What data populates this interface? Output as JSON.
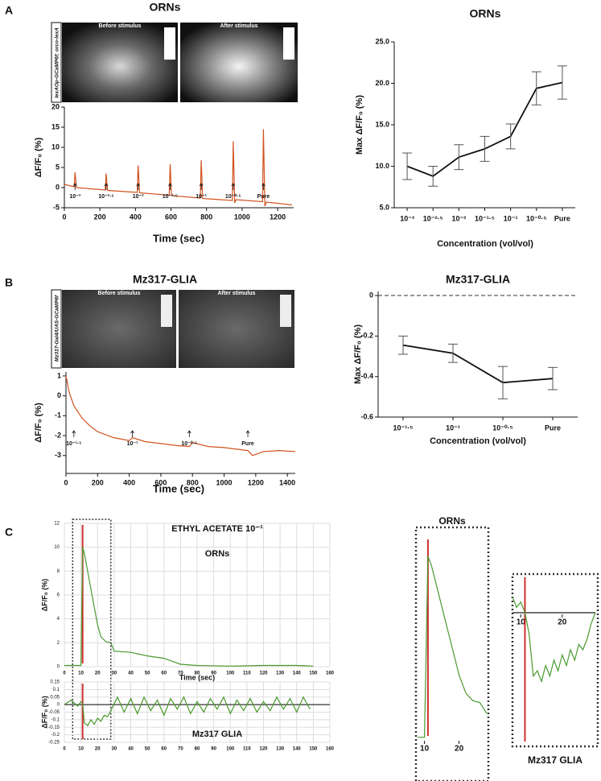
{
  "panels": [
    "A",
    "B",
    "C"
  ],
  "images": [
    {
      "genotype": "lexAOp-GCaMP6f; orco-lexA",
      "before": "Before stimulus",
      "after": "After stimulus"
    },
    {
      "genotype": "Mz317-Gal4/UAS-GCaMP6f",
      "before": "Before stimulus",
      "after": "After stimulus"
    }
  ],
  "chart_data": [
    {
      "type": "line",
      "title": "ORNs",
      "y_label": "Max ΔF/F₀ (%)",
      "x_label": "Concentration (vol/vol)",
      "categories": [
        "10⁻³",
        "10⁻²·⁵",
        "10⁻²",
        "10⁻¹·⁵",
        "10⁻¹",
        "10⁻⁰·⁵",
        "Pure"
      ],
      "values": [
        10.0,
        8.8,
        11.1,
        12.1,
        13.6,
        19.4,
        20.1
      ],
      "errors": [
        1.6,
        1.2,
        1.5,
        1.5,
        1.5,
        2.0,
        2.0
      ],
      "color": "#111111",
      "ylim": [
        5,
        25
      ],
      "yticks": [
        {
          "value": 5,
          "label": "5.0"
        },
        {
          "value": 10,
          "label": "10.0"
        },
        {
          "value": 15,
          "label": "15.0"
        },
        {
          "value": 20,
          "label": "20.0"
        },
        {
          "value": 25,
          "label": "25.0"
        }
      ]
    },
    {
      "type": "line",
      "title": "Mz317-GLIA",
      "y_label": "Max ΔF/F₀ (%)",
      "x_label": "Concentration (vol/vol)",
      "categories": [
        "10⁻¹·⁵",
        "10⁻¹",
        "10⁻⁰·⁵",
        "Pure"
      ],
      "values": [
        -0.245,
        -0.285,
        -0.43,
        -0.41
      ],
      "errors": [
        0.045,
        0.045,
        0.08,
        0.055
      ],
      "color": "#111111",
      "ylim": [
        -0.6,
        0.02
      ],
      "yticks": [
        -0.6,
        -0.4,
        -0.2,
        0
      ],
      "zero_line": "dashed"
    },
    {
      "type": "line",
      "title": "ORNs",
      "y_label": "ΔF/F₀ (%)",
      "x_label": "Time (sec)",
      "x": [
        0,
        55,
        60,
        68,
        230,
        235,
        243,
        410,
        415,
        423,
        590,
        595,
        603,
        765,
        770,
        778,
        945,
        950,
        958,
        966,
        1115,
        1120,
        1128,
        1136,
        1280
      ],
      "values": [
        0.8,
        0.2,
        3.8,
        0.0,
        -0.6,
        3.5,
        -0.7,
        -1.2,
        5.5,
        -1.3,
        -1.9,
        5.8,
        -2.0,
        -2.6,
        6.8,
        -2.7,
        -3.2,
        11.5,
        -3.8,
        -3.0,
        -3.5,
        14.5,
        -4.6,
        -3.6,
        -4.3
      ],
      "color": "#d2521e",
      "xlim": [
        0,
        1290
      ],
      "xticks": [
        0,
        200,
        400,
        600,
        800,
        1000,
        1200
      ],
      "ylim": [
        -5,
        20
      ],
      "yticks": [
        -5,
        0,
        5,
        10,
        15,
        20
      ],
      "annotations": [
        {
          "x": 60,
          "label": "10⁻³"
        },
        {
          "x": 235,
          "label": "10⁻²·⁵"
        },
        {
          "x": 415,
          "label": "10⁻²"
        },
        {
          "x": 595,
          "label": "10⁻¹·⁵"
        },
        {
          "x": 770,
          "label": "10⁻¹"
        },
        {
          "x": 950,
          "label": "10⁻⁰·⁵"
        },
        {
          "x": 1120,
          "label": "Pure"
        }
      ]
    },
    {
      "type": "line",
      "title": "Mz317-GLIA",
      "y_label": "ΔF/F₀ (%)",
      "x_label": "Time (sec)",
      "x": [
        0,
        20,
        50,
        100,
        150,
        200,
        300,
        400,
        420,
        500,
        600,
        700,
        780,
        800,
        900,
        1000,
        1100,
        1150,
        1180,
        1250,
        1350,
        1450
      ],
      "values": [
        1.0,
        0.2,
        -0.5,
        -1.1,
        -1.5,
        -1.8,
        -2.1,
        -2.25,
        -2.1,
        -2.3,
        -2.4,
        -2.5,
        -2.55,
        -2.35,
        -2.55,
        -2.6,
        -2.7,
        -2.75,
        -3.0,
        -2.8,
        -2.75,
        -2.8
      ],
      "color": "#d2521e",
      "xlim": [
        0,
        1450
      ],
      "xticks": [
        0,
        200,
        400,
        600,
        800,
        1000,
        1200,
        1400
      ],
      "ylim": [
        -3.9,
        1.2
      ],
      "yticks": [
        -3,
        -2,
        -1,
        0,
        1
      ],
      "annotations": [
        {
          "x": 50,
          "label": "10⁻¹·⁵"
        },
        {
          "x": 420,
          "label": "10⁻¹"
        },
        {
          "x": 780,
          "label": "10⁻⁰·⁵"
        },
        {
          "x": 1150,
          "label": "Pure"
        }
      ]
    },
    {
      "type": "line",
      "title": "ETHYL ACETATE 10⁻¹",
      "series_label": "ORNs",
      "y_label": "ΔF/F₀ (%)",
      "x_label": "Time (sec)",
      "x": [
        0,
        5,
        10,
        11,
        12,
        14,
        16,
        18,
        20,
        22,
        25,
        28,
        30,
        40,
        50,
        60,
        70,
        80,
        100,
        120,
        140,
        150
      ],
      "values": [
        0.1,
        0.1,
        0.1,
        10,
        9.5,
        8,
        6.5,
        5,
        3.5,
        2.5,
        2.1,
        2,
        1.3,
        1.2,
        0.9,
        0.7,
        0.2,
        0.1,
        0.05,
        0.1,
        0.1,
        0.05
      ],
      "color": "#4a9a2e",
      "stimulus": 11,
      "stimulus_color": "#d03030",
      "highlight_range": [
        5,
        28
      ],
      "grid": true,
      "xlim": [
        0,
        160
      ],
      "xticks": [
        0,
        10,
        20,
        30,
        40,
        50,
        60,
        70,
        80,
        90,
        100,
        110,
        120,
        130,
        140,
        150,
        160
      ],
      "ylim": [
        0,
        12
      ],
      "yticks": [
        0,
        2,
        4,
        6,
        8,
        10,
        12
      ]
    },
    {
      "type": "line",
      "series_label": "Mz317 GLIA",
      "y_label": "ΔF/F₀ (%)",
      "x": [
        0,
        4,
        8,
        10,
        11,
        12,
        14,
        16,
        18,
        20,
        22,
        24,
        26,
        28,
        32,
        36,
        40,
        44,
        48,
        52,
        56,
        60,
        64,
        68,
        72,
        76,
        80,
        84,
        88,
        92,
        96,
        100,
        104,
        108,
        112,
        116,
        120,
        124,
        128,
        132,
        136,
        140,
        144,
        148
      ],
      "values": [
        0.0,
        0.03,
        -0.01,
        0.02,
        0.01,
        -0.12,
        -0.14,
        -0.1,
        -0.13,
        -0.09,
        -0.11,
        -0.07,
        -0.08,
        -0.04,
        0.05,
        -0.05,
        0.04,
        -0.06,
        0.05,
        -0.04,
        0.03,
        -0.07,
        0.04,
        -0.03,
        0.05,
        -0.06,
        0.02,
        -0.05,
        0.04,
        -0.03,
        0.05,
        -0.06,
        0.03,
        -0.04,
        0.04,
        -0.05,
        0.02,
        -0.04,
        0.05,
        -0.03,
        0.04,
        -0.05,
        0.05,
        -0.03
      ],
      "color": "#4a9a2e",
      "stimulus": 11,
      "stimulus_color": "#d03030",
      "grid": true,
      "zero_line": "solid",
      "xlim": [
        0,
        160
      ],
      "xticks": [
        0,
        10,
        20,
        30,
        40,
        50,
        60,
        70,
        80,
        90,
        100,
        110,
        120,
        130,
        140,
        150,
        160
      ],
      "ylim": [
        -0.25,
        0.15
      ],
      "yticks": [
        -0.25,
        -0.2,
        -0.15,
        -0.1,
        -0.05,
        0,
        0.05,
        0.1,
        0.15
      ]
    },
    {
      "type": "line",
      "title": "ORNs",
      "x": [
        8,
        10,
        11,
        12,
        14,
        16,
        18,
        20,
        22,
        24,
        26,
        28
      ],
      "values": [
        0.1,
        0.1,
        10,
        9.5,
        8,
        6.5,
        5,
        3.5,
        2.5,
        2.1,
        2,
        1.4
      ],
      "color": "#4a9a2e",
      "stimulus": 11,
      "stimulus_color": "#d03030",
      "xlim": [
        8,
        28
      ],
      "xticks": [
        10,
        20
      ],
      "ylim": [
        0,
        11
      ]
    },
    {
      "type": "line",
      "title": "Mz317 GLIA",
      "x": [
        8,
        9,
        10,
        11,
        12,
        13,
        14,
        15,
        16,
        17,
        18,
        19,
        20,
        21,
        22,
        23,
        24,
        25,
        26,
        27,
        28
      ],
      "values": [
        0.03,
        0.01,
        0.02,
        0.0,
        -0.04,
        -0.12,
        -0.11,
        -0.13,
        -0.1,
        -0.12,
        -0.09,
        -0.11,
        -0.08,
        -0.1,
        -0.07,
        -0.09,
        -0.06,
        -0.07,
        -0.05,
        -0.02,
        0.0
      ],
      "color": "#4a9a2e",
      "stimulus": 11,
      "stimulus_color": "#d03030",
      "zero_line": "solid",
      "xlim": [
        8,
        28
      ],
      "xticks": [
        10,
        20
      ],
      "ylim": [
        -0.25,
        0.07
      ]
    }
  ]
}
